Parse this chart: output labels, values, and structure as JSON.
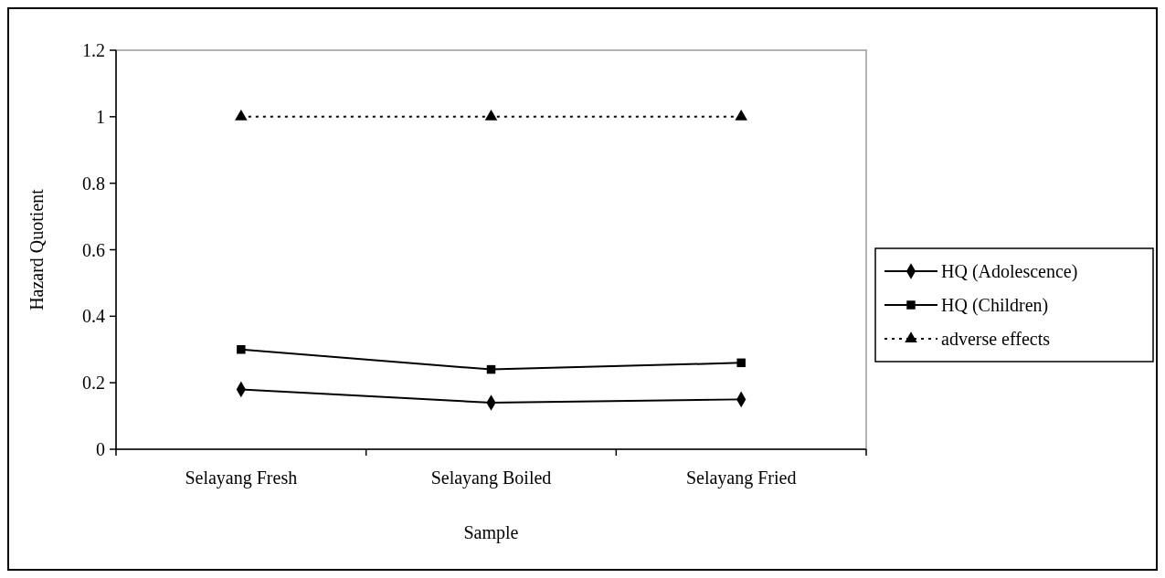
{
  "chart_data": {
    "type": "line",
    "xlabel": "Sample",
    "ylabel": "Hazard Quotient",
    "categories": [
      "Selayang Fresh",
      "Selayang Boiled",
      "Selayang Fried"
    ],
    "series": [
      {
        "name": "HQ (Adolescence)",
        "color": "#000000",
        "values": [
          0.18,
          0.14,
          0.15
        ],
        "marker": "diamond",
        "line_style": "solid"
      },
      {
        "name": "HQ (Children)",
        "color": "#000000",
        "values": [
          0.3,
          0.24,
          0.26
        ],
        "marker": "square",
        "line_style": "solid"
      },
      {
        "name": "adverse effects",
        "color": "#000000",
        "values": [
          1,
          1,
          1
        ],
        "marker": "triangle",
        "line_style": "dotted"
      }
    ],
    "ylim": [
      0,
      1.2
    ],
    "yticks": [
      0,
      0.2,
      0.4,
      0.6,
      0.8,
      1,
      1.2
    ],
    "grid": false,
    "legend": "right"
  }
}
